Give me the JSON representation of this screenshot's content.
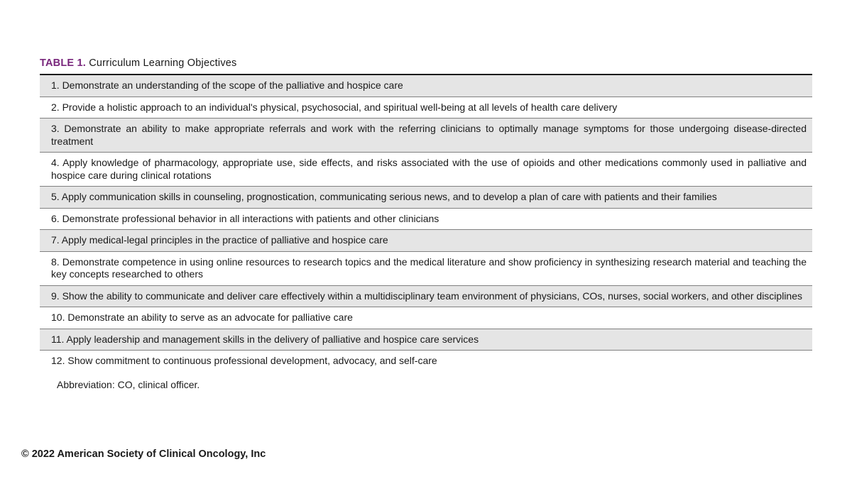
{
  "table": {
    "label": "TABLE 1.",
    "title": " Curriculum Learning Objectives",
    "row_background_shaded": "#e5e5e5",
    "row_border_color": "#808080",
    "title_color": "#79277c",
    "rows": [
      {
        "n": "1.",
        "text": "Demonstrate an understanding of the scope of the palliative and hospice care",
        "shaded": true
      },
      {
        "n": "2.",
        "text": "Provide a holistic approach to an individual's physical, psychosocial, and spiritual well-being at all levels of health care delivery",
        "shaded": false
      },
      {
        "n": "3.",
        "text": "Demonstrate an ability to make appropriate referrals and work with the referring clinicians to optimally manage symptoms for those undergoing disease-directed treatment",
        "shaded": true
      },
      {
        "n": "4.",
        "text": "Apply knowledge of pharmacology, appropriate use, side effects, and risks associated with the use of opioids and other medications commonly used in palliative and hospice care during clinical rotations",
        "shaded": false
      },
      {
        "n": "5.",
        "text": "Apply communication skills in counseling, prognostication, communicating serious news, and to develop a plan of care with patients and their families",
        "shaded": true
      },
      {
        "n": "6.",
        "text": "Demonstrate professional behavior in all interactions with patients and other clinicians",
        "shaded": false
      },
      {
        "n": "7.",
        "text": "Apply medical-legal principles in the practice of palliative and hospice care",
        "shaded": true
      },
      {
        "n": "8.",
        "text": "Demonstrate competence in using online resources to research topics and the medical literature and show proficiency in synthesizing research material and teaching the key concepts researched to others",
        "shaded": false
      },
      {
        "n": "9.",
        "text": "Show the ability to communicate and deliver care effectively within a multidisciplinary team environment of physicians, COs, nurses, social workers, and other disciplines",
        "shaded": true
      },
      {
        "n": "10.",
        "text": "Demonstrate an ability to serve as an advocate for palliative care",
        "shaded": false
      },
      {
        "n": "11.",
        "text": "Apply leadership and management skills in the delivery of palliative and hospice care services",
        "shaded": true
      },
      {
        "n": "12.",
        "text": "Show commitment to continuous professional development, advocacy, and self-care",
        "shaded": false
      }
    ],
    "abbreviation": "Abbreviation: CO, clinical officer."
  },
  "copyright": "© 2022 American Society of Clinical Oncology, Inc"
}
